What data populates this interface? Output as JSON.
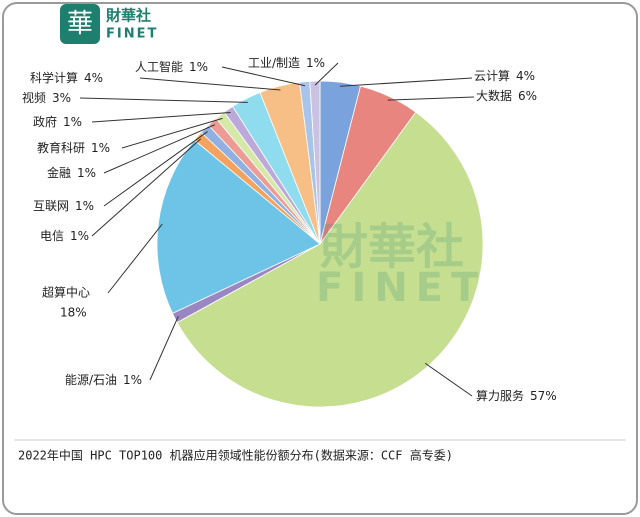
{
  "logo": {
    "name": "財華社",
    "en": "FINET"
  },
  "chart_data": {
    "type": "pie",
    "categories": [
      "云计算",
      "大数据",
      "算力服务",
      "能源/石油",
      "超算中心",
      "电信",
      "互联网",
      "金融",
      "教育科研",
      "政府",
      "视频",
      "科学计算",
      "人工智能",
      "工业/制造"
    ],
    "values": [
      4,
      6,
      57,
      1,
      18,
      1,
      1,
      1,
      1,
      1,
      3,
      4,
      1,
      1
    ],
    "value_labels": [
      "4%",
      "6%",
      "57%",
      "1%",
      "18%",
      "1%",
      "1%",
      "1%",
      "1%",
      "1%",
      "3%",
      "4%",
      "1%",
      "1%"
    ],
    "colors": [
      "#7aa3de",
      "#e8857e",
      "#c5de90",
      "#9a86c2",
      "#6ec4e6",
      "#f3a35e",
      "#8fb0e0",
      "#ec9c94",
      "#d6e8a8",
      "#bba9da",
      "#8fdcef",
      "#f7bf86",
      "#a9c4ea",
      "#c9c2e0"
    ],
    "caption": "2022年中国 HPC TOP100 机器应用领域性能份额分布(数据来源：CCF 高专委)"
  }
}
